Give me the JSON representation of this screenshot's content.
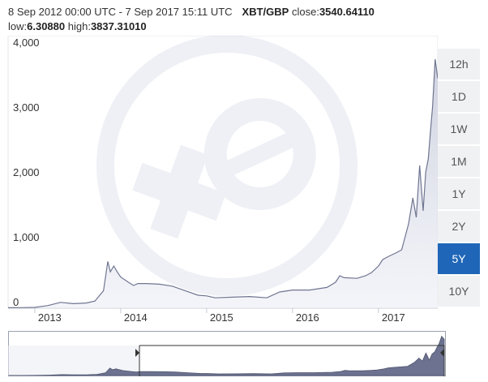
{
  "header": {
    "range_text": "8 Sep 2012 00:00 UTC - 7 Sep 2017 15:11 UTC",
    "pair": "XBT/GBP",
    "close_label": "close:",
    "close_value": "3540.64110",
    "low_label": "low:",
    "low_value": "6.30880",
    "high_label": "high:",
    "high_value": "3837.31010"
  },
  "ranges": [
    {
      "label": "12h",
      "active": false
    },
    {
      "label": "1D",
      "active": false
    },
    {
      "label": "1W",
      "active": false
    },
    {
      "label": "1M",
      "active": false
    },
    {
      "label": "1Y",
      "active": false
    },
    {
      "label": "2Y",
      "active": false
    },
    {
      "label": "5Y",
      "active": true
    },
    {
      "label": "10Y",
      "active": false
    }
  ],
  "chart_data": {
    "type": "area",
    "x_ticks": [
      "2013",
      "2014",
      "2015",
      "2016",
      "2017"
    ],
    "y_ticks": [
      "0",
      "1,000",
      "2,000",
      "3,000",
      "4,000"
    ],
    "ylim": [
      0,
      4200
    ],
    "xlim": [
      2012.69,
      2017.69
    ],
    "grid": false,
    "series": [
      {
        "x": [
          2012.69,
          2012.85,
          2013.0,
          2013.15,
          2013.3,
          2013.45,
          2013.6,
          2013.7,
          2013.8,
          2013.85,
          2013.88,
          2013.92,
          2013.96,
          2014.0,
          2014.1,
          2014.15,
          2014.2,
          2014.3,
          2014.45,
          2014.6,
          2014.75,
          2014.9,
          2015.0,
          2015.1,
          2015.3,
          2015.5,
          2015.7,
          2015.85,
          2016.0,
          2016.2,
          2016.4,
          2016.5,
          2016.55,
          2016.6,
          2016.75,
          2016.85,
          2016.92,
          2017.0,
          2017.05,
          2017.12,
          2017.2,
          2017.27,
          2017.35,
          2017.4,
          2017.44,
          2017.48,
          2017.52,
          2017.55,
          2017.58,
          2017.61,
          2017.63,
          2017.66,
          2017.69
        ],
        "y": [
          7,
          9,
          12,
          40,
          90,
          70,
          80,
          110,
          270,
          720,
          560,
          650,
          560,
          480,
          390,
          350,
          380,
          380,
          370,
          340,
          270,
          200,
          190,
          160,
          170,
          180,
          160,
          250,
          280,
          280,
          320,
          400,
          500,
          470,
          460,
          500,
          550,
          650,
          750,
          800,
          850,
          900,
          1300,
          1700,
          1400,
          2200,
          1500,
          2100,
          2300,
          2800,
          3100,
          3837,
          3540
        ]
      }
    ]
  }
}
